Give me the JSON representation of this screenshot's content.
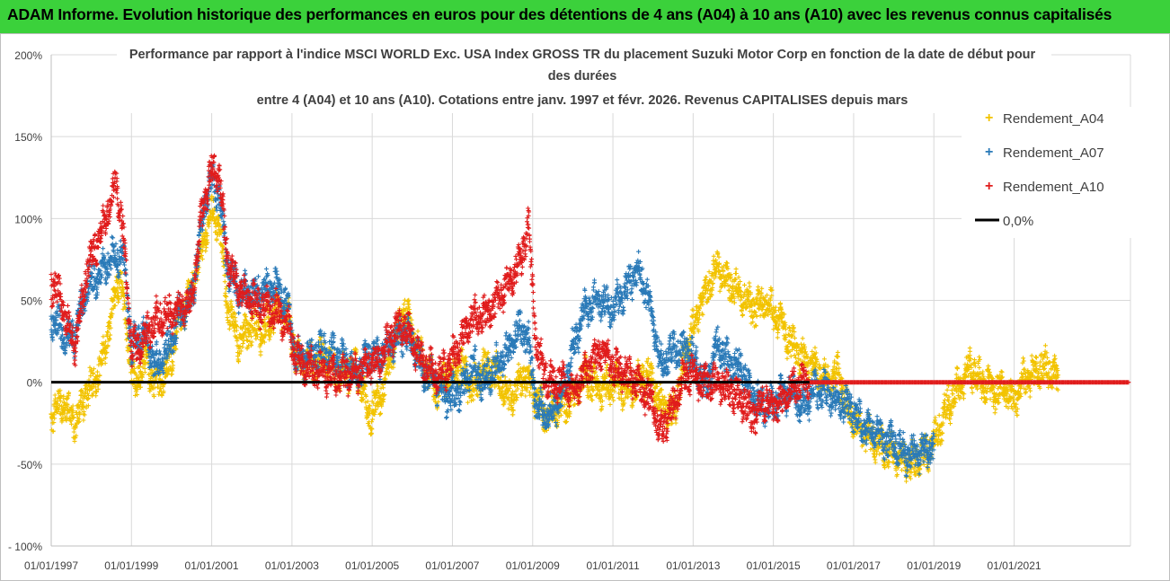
{
  "header": {
    "banner": "ADAM Informe. Evolution historique des performances en euros pour des détentions de 4 ans (A04) à 10 ans (A10) avec les revenus connus capitalisés"
  },
  "colors": {
    "banner_bg": "#3bd13b",
    "A04": "#f2c300",
    "A07": "#2a7ab8",
    "A10": "#e01c1c",
    "zero": "#000000",
    "grid": "#d9d9d9"
  },
  "chart_data": {
    "type": "scatter",
    "title_lines": [
      "Performance par rapport à l'indice MSCI WORLD Exc. USA Index GROSS TR  du placement Suzuki Motor Corp en fonction de la date de début pour",
      "des durées",
      "entre 4 (A04) et 10 ans (A10). Cotations entre janv. 1997 et févr. 2026. Revenus CAPITALISES depuis mars"
    ],
    "x_range": [
      1997.0,
      2023.9
    ],
    "ylim": [
      -100,
      200
    ],
    "y_ticks": [
      -100,
      -50,
      0,
      50,
      100,
      150,
      200
    ],
    "y_tick_labels": [
      "- 100%",
      "-50%",
      "0%",
      "50%",
      "100%",
      "150%",
      "200%"
    ],
    "x_ticks": [
      1997,
      1999,
      2001,
      2003,
      2005,
      2007,
      2009,
      2011,
      2013,
      2015,
      2017,
      2019,
      2021
    ],
    "x_tick_labels": [
      "01/01/1997",
      "01/01/1999",
      "01/01/2001",
      "01/01/2003",
      "01/01/2005",
      "01/01/2007",
      "01/01/2009",
      "01/01/2011",
      "01/01/2013",
      "01/01/2015",
      "01/01/2017",
      "01/01/2019",
      "01/01/2021"
    ],
    "legend": {
      "position": "right",
      "entries": [
        {
          "key": "A04",
          "label": "Rendement_A04",
          "marker": "+"
        },
        {
          "key": "A07",
          "label": "Rendement_A07",
          "marker": "+"
        },
        {
          "key": "A10",
          "label": "Rendement_A10",
          "marker": "+"
        },
        {
          "key": "zero",
          "label": "0,0%",
          "marker": "line"
        }
      ]
    },
    "series": [
      {
        "name": "Rendement_A04",
        "key": "A04",
        "end": 2022.1,
        "points": [
          [
            1997.0,
            -20
          ],
          [
            1997.3,
            -12
          ],
          [
            1997.6,
            -25
          ],
          [
            1997.9,
            -5
          ],
          [
            1998.2,
            5
          ],
          [
            1998.5,
            40
          ],
          [
            1998.7,
            65
          ],
          [
            1998.9,
            30
          ],
          [
            1999.1,
            -5
          ],
          [
            1999.3,
            15
          ],
          [
            1999.6,
            0
          ],
          [
            1999.9,
            5
          ],
          [
            2000.2,
            40
          ],
          [
            2000.5,
            55
          ],
          [
            2000.8,
            85
          ],
          [
            2001.0,
            105
          ],
          [
            2001.2,
            95
          ],
          [
            2001.4,
            45
          ],
          [
            2001.7,
            25
          ],
          [
            2002.0,
            35
          ],
          [
            2002.3,
            30
          ],
          [
            2002.6,
            45
          ],
          [
            2002.9,
            40
          ],
          [
            2003.1,
            15
          ],
          [
            2003.4,
            10
          ],
          [
            2003.8,
            15
          ],
          [
            2004.2,
            5
          ],
          [
            2004.6,
            10
          ],
          [
            2004.9,
            -20
          ],
          [
            2005.2,
            -10
          ],
          [
            2005.5,
            20
          ],
          [
            2005.8,
            45
          ],
          [
            2006.0,
            30
          ],
          [
            2006.3,
            10
          ],
          [
            2006.6,
            -5
          ],
          [
            2006.9,
            5
          ],
          [
            2007.2,
            10
          ],
          [
            2007.5,
            -5
          ],
          [
            2007.8,
            10
          ],
          [
            2008.1,
            5
          ],
          [
            2008.4,
            -10
          ],
          [
            2008.8,
            5
          ],
          [
            2009.0,
            -5
          ],
          [
            2009.3,
            -20
          ],
          [
            2009.7,
            -15
          ],
          [
            2010.0,
            -10
          ],
          [
            2010.3,
            5
          ],
          [
            2010.7,
            -5
          ],
          [
            2011.0,
            0
          ],
          [
            2011.3,
            -5
          ],
          [
            2011.6,
            0
          ],
          [
            2011.9,
            5
          ],
          [
            2012.2,
            -15
          ],
          [
            2012.5,
            -20
          ],
          [
            2012.8,
            15
          ],
          [
            2013.0,
            35
          ],
          [
            2013.3,
            55
          ],
          [
            2013.6,
            70
          ],
          [
            2013.9,
            60
          ],
          [
            2014.2,
            55
          ],
          [
            2014.5,
            45
          ],
          [
            2014.8,
            50
          ],
          [
            2015.1,
            40
          ],
          [
            2015.4,
            25
          ],
          [
            2015.7,
            15
          ],
          [
            2016.0,
            10
          ],
          [
            2016.3,
            0
          ],
          [
            2016.6,
            5
          ],
          [
            2016.9,
            -20
          ],
          [
            2017.2,
            -30
          ],
          [
            2017.5,
            -35
          ],
          [
            2017.8,
            -40
          ],
          [
            2018.1,
            -45
          ],
          [
            2018.4,
            -50
          ],
          [
            2018.7,
            -45
          ],
          [
            2019.0,
            -38
          ],
          [
            2019.3,
            -15
          ],
          [
            2019.6,
            -5
          ],
          [
            2019.9,
            10
          ],
          [
            2020.2,
            0
          ],
          [
            2020.5,
            -5
          ],
          [
            2020.8,
            -5
          ],
          [
            2021.0,
            -10
          ],
          [
            2021.2,
            0
          ],
          [
            2021.5,
            5
          ],
          [
            2021.8,
            10
          ],
          [
            2022.1,
            0
          ]
        ]
      },
      {
        "name": "Rendement_A07",
        "key": "A07",
        "end": 2019.0,
        "points": [
          [
            1997.0,
            40
          ],
          [
            1997.2,
            35
          ],
          [
            1997.4,
            25
          ],
          [
            1997.6,
            30
          ],
          [
            1997.9,
            60
          ],
          [
            1998.2,
            65
          ],
          [
            1998.5,
            75
          ],
          [
            1998.8,
            80
          ],
          [
            1999.0,
            20
          ],
          [
            1999.3,
            30
          ],
          [
            1999.6,
            10
          ],
          [
            1999.9,
            20
          ],
          [
            2000.2,
            40
          ],
          [
            2000.5,
            50
          ],
          [
            2000.8,
            105
          ],
          [
            2001.0,
            125
          ],
          [
            2001.2,
            115
          ],
          [
            2001.4,
            70
          ],
          [
            2001.7,
            55
          ],
          [
            2002.0,
            55
          ],
          [
            2002.3,
            55
          ],
          [
            2002.6,
            60
          ],
          [
            2002.9,
            45
          ],
          [
            2003.1,
            15
          ],
          [
            2003.4,
            15
          ],
          [
            2003.8,
            20
          ],
          [
            2004.2,
            15
          ],
          [
            2004.6,
            5
          ],
          [
            2004.9,
            15
          ],
          [
            2005.2,
            15
          ],
          [
            2005.5,
            25
          ],
          [
            2005.8,
            30
          ],
          [
            2006.0,
            25
          ],
          [
            2006.3,
            5
          ],
          [
            2006.6,
            0
          ],
          [
            2006.9,
            -10
          ],
          [
            2007.2,
            -5
          ],
          [
            2007.5,
            10
          ],
          [
            2007.8,
            0
          ],
          [
            2008.1,
            10
          ],
          [
            2008.4,
            20
          ],
          [
            2008.7,
            35
          ],
          [
            2008.9,
            25
          ],
          [
            2009.1,
            -15
          ],
          [
            2009.4,
            -20
          ],
          [
            2009.7,
            -10
          ],
          [
            2010.0,
            20
          ],
          [
            2010.3,
            45
          ],
          [
            2010.7,
            50
          ],
          [
            2011.0,
            45
          ],
          [
            2011.3,
            55
          ],
          [
            2011.6,
            70
          ],
          [
            2011.9,
            50
          ],
          [
            2012.2,
            10
          ],
          [
            2012.5,
            20
          ],
          [
            2012.8,
            20
          ],
          [
            2013.0,
            15
          ],
          [
            2013.3,
            -5
          ],
          [
            2013.6,
            25
          ],
          [
            2013.9,
            10
          ],
          [
            2014.2,
            10
          ],
          [
            2014.5,
            -10
          ],
          [
            2014.8,
            -15
          ],
          [
            2015.1,
            -10
          ],
          [
            2015.4,
            -5
          ],
          [
            2015.7,
            -15
          ],
          [
            2016.0,
            -5
          ],
          [
            2016.3,
            -5
          ],
          [
            2016.6,
            -10
          ],
          [
            2016.9,
            -15
          ],
          [
            2017.2,
            -25
          ],
          [
            2017.5,
            -30
          ],
          [
            2017.8,
            -35
          ],
          [
            2018.1,
            -40
          ],
          [
            2018.4,
            -45
          ],
          [
            2018.7,
            -42
          ],
          [
            2019.0,
            -40
          ]
        ]
      },
      {
        "name": "Rendement_A10",
        "key": "A10",
        "end": 2015.9,
        "points": [
          [
            1997.0,
            60
          ],
          [
            1997.2,
            55
          ],
          [
            1997.4,
            35
          ],
          [
            1997.6,
            20
          ],
          [
            1997.9,
            70
          ],
          [
            1998.2,
            90
          ],
          [
            1998.5,
            110
          ],
          [
            1998.6,
            125
          ],
          [
            1998.8,
            90
          ],
          [
            1999.0,
            20
          ],
          [
            1999.3,
            25
          ],
          [
            1999.6,
            40
          ],
          [
            1999.9,
            40
          ],
          [
            2000.2,
            45
          ],
          [
            2000.5,
            50
          ],
          [
            2000.8,
            110
          ],
          [
            2001.0,
            130
          ],
          [
            2001.2,
            125
          ],
          [
            2001.4,
            75
          ],
          [
            2001.7,
            55
          ],
          [
            2002.0,
            50
          ],
          [
            2002.3,
            45
          ],
          [
            2002.6,
            45
          ],
          [
            2002.9,
            35
          ],
          [
            2003.1,
            15
          ],
          [
            2003.4,
            10
          ],
          [
            2003.8,
            5
          ],
          [
            2004.2,
            5
          ],
          [
            2004.6,
            5
          ],
          [
            2004.9,
            10
          ],
          [
            2005.2,
            15
          ],
          [
            2005.5,
            30
          ],
          [
            2005.8,
            35
          ],
          [
            2006.0,
            25
          ],
          [
            2006.3,
            10
          ],
          [
            2006.6,
            5
          ],
          [
            2006.9,
            10
          ],
          [
            2007.2,
            25
          ],
          [
            2007.5,
            40
          ],
          [
            2007.8,
            40
          ],
          [
            2008.1,
            50
          ],
          [
            2008.4,
            60
          ],
          [
            2008.7,
            75
          ],
          [
            2008.9,
            95
          ],
          [
            2009.1,
            20
          ],
          [
            2009.4,
            0
          ],
          [
            2009.7,
            0
          ],
          [
            2010.0,
            -5
          ],
          [
            2010.3,
            5
          ],
          [
            2010.7,
            20
          ],
          [
            2011.0,
            10
          ],
          [
            2011.3,
            5
          ],
          [
            2011.6,
            0
          ],
          [
            2011.9,
            -10
          ],
          [
            2012.2,
            -30
          ],
          [
            2012.5,
            -15
          ],
          [
            2012.8,
            5
          ],
          [
            2013.0,
            5
          ],
          [
            2013.3,
            0
          ],
          [
            2013.6,
            0
          ],
          [
            2013.9,
            -5
          ],
          [
            2014.2,
            -10
          ],
          [
            2014.5,
            -20
          ],
          [
            2014.8,
            -10
          ],
          [
            2015.1,
            -15
          ],
          [
            2015.4,
            -5
          ],
          [
            2015.7,
            0
          ],
          [
            2015.9,
            0
          ]
        ]
      }
    ],
    "zero_line": 0
  }
}
